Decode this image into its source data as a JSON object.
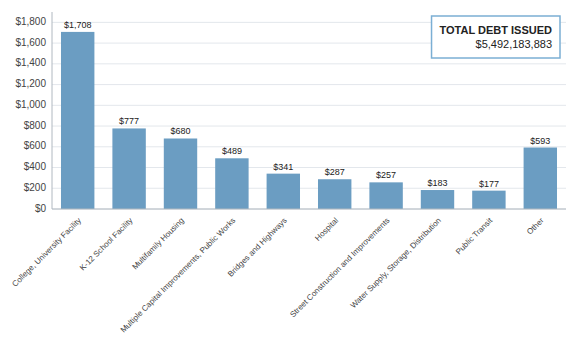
{
  "chart_data": {
    "type": "bar",
    "categories": [
      "College, University Facility",
      "K-12 School Facility",
      "Multifamily Housing",
      "Multiple Capital Improvements, Public Works",
      "Bridges and Highways",
      "Hospital",
      "Street Construction and Improvements",
      "Water Supply, Storage, Distribution",
      "Public Transit",
      "Other"
    ],
    "values": [
      1708,
      777,
      680,
      489,
      341,
      287,
      257,
      183,
      177,
      593
    ],
    "value_labels": [
      "$1,708",
      "$777",
      "$680",
      "$489",
      "$341",
      "$287",
      "$257",
      "$183",
      "$177",
      "$593"
    ],
    "data_labels": true,
    "color": "#6b9dc2",
    "ylim": [
      0,
      1900
    ],
    "yticks": [
      {
        "value": 0,
        "label": "$0"
      },
      {
        "value": 200,
        "label": "$200"
      },
      {
        "value": 400,
        "label": "$400"
      },
      {
        "value": 600,
        "label": "$600"
      },
      {
        "value": 800,
        "label": "$800"
      },
      {
        "value": 1000,
        "label": "$1,000"
      },
      {
        "value": 1200,
        "label": "$1,200"
      },
      {
        "value": 1400,
        "label": "$1,400"
      },
      {
        "value": 1600,
        "label": "$1,600"
      },
      {
        "value": 1800,
        "label": "$1,800"
      }
    ],
    "grid": true,
    "annotations": [
      "TOTAL DEBT ISSUED",
      "$5,492,183,883"
    ]
  }
}
